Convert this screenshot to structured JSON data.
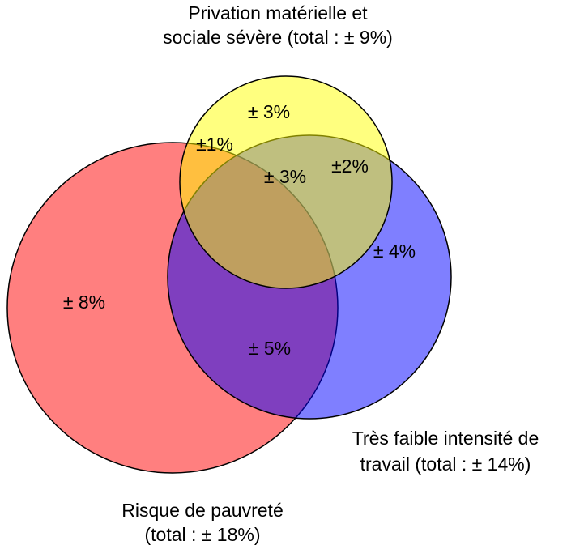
{
  "sets": [
    {
      "label_lines": [
        "Risque de pauvreté",
        "(total : ± 18%)"
      ]
    },
    {
      "label_lines": [
        "Très faible intensité de",
        "travail (total : ± 14%)"
      ]
    },
    {
      "label_lines": [
        "Privation matérielle et",
        "sociale sévère (total : ± 9%)"
      ]
    }
  ],
  "regions": [
    {
      "label": "± 8%"
    },
    {
      "label": "± 4%"
    },
    {
      "label": "± 3%"
    },
    {
      "label": "±1%"
    },
    {
      "label": "±2%"
    },
    {
      "label": "± 5%"
    },
    {
      "label": "± 3%"
    }
  ]
}
